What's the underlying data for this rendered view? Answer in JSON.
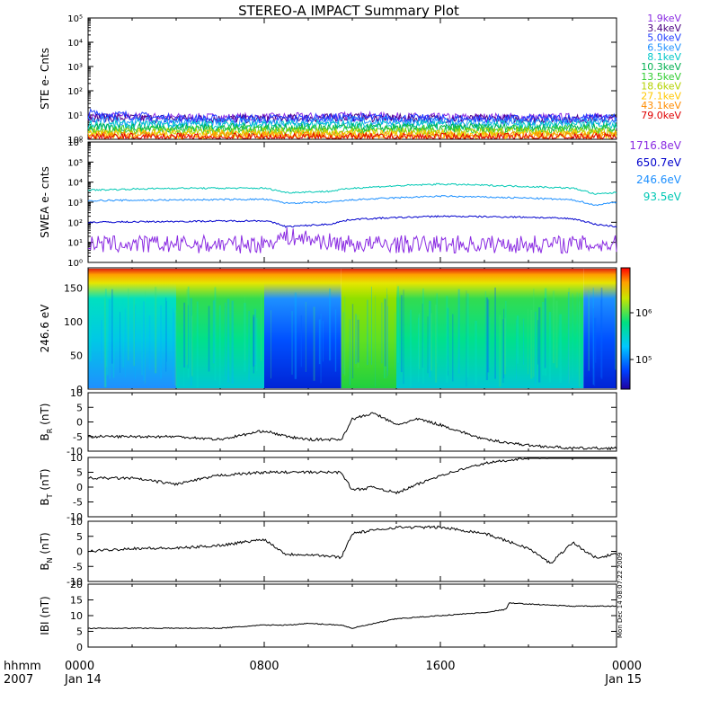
{
  "title": "STEREO-A IMPACT Summary Plot",
  "footer": {
    "time_label": "hhmm",
    "year_label": "2007",
    "ticks": [
      {
        "t": 0,
        "time": "0000",
        "date": "Jan 14"
      },
      {
        "t": 8,
        "time": "0800",
        "date": ""
      },
      {
        "t": 16,
        "time": "1600",
        "date": ""
      },
      {
        "t": 24,
        "time": "0000",
        "date": "Jan 15"
      }
    ],
    "timestamp": "Mon Dec 14 08:07:22 2009"
  },
  "colors": {
    "1.9keV": "#8a2be2",
    "3.4keV": "#4b0082",
    "5.0keV": "#1e3cff",
    "6.5keV": "#1e90ff",
    "8.1keV": "#00c8c8",
    "10.3keV": "#00b050",
    "13.5keV": "#32cd32",
    "18.6keV": "#b4d200",
    "27.1keV": "#ffc800",
    "43.1keV": "#ff8c00",
    "79.0keV": "#e00000",
    "1716.8eV": "#8a2be2",
    "650.7eV": "#0000cd",
    "246.6eV": "#1e90ff",
    "93.5eV": "#00c8b4"
  },
  "chart_data": [
    {
      "type": "line",
      "panel": "STE",
      "ylabel": "STE e- Cnts",
      "yscale": "log",
      "ylim": [
        1,
        100000
      ],
      "yticks": [
        "10⁰",
        "10¹",
        "10²",
        "10³",
        "10⁴",
        "10⁵"
      ],
      "legend": [
        "1.9keV",
        "3.4keV",
        "5.0keV",
        "6.5keV",
        "8.1keV",
        "10.3keV",
        "13.5keV",
        "18.6keV",
        "27.1keV",
        "43.1keV",
        "79.0keV"
      ],
      "x": [
        0,
        4,
        8,
        12,
        16,
        20,
        24
      ],
      "series": [
        {
          "name": "1.9keV",
          "values": [
            9,
            8,
            8,
            9,
            8,
            8,
            8
          ]
        },
        {
          "name": "3.4keV",
          "values": [
            8,
            7,
            7,
            8,
            7,
            7,
            7
          ]
        },
        {
          "name": "5.0keV",
          "values": [
            12,
            7,
            7,
            8,
            7,
            7,
            8
          ]
        },
        {
          "name": "6.5keV",
          "values": [
            6,
            5,
            5,
            6,
            5,
            5,
            5
          ]
        },
        {
          "name": "8.1keV",
          "values": [
            4,
            4,
            4,
            4,
            4,
            4,
            4
          ]
        },
        {
          "name": "10.3keV",
          "values": [
            3,
            3,
            3,
            3,
            3,
            3,
            3
          ]
        },
        {
          "name": "13.5keV",
          "values": [
            2.5,
            2.5,
            2.5,
            2.5,
            2.5,
            2.5,
            2.5
          ]
        },
        {
          "name": "18.6keV",
          "values": [
            2,
            2,
            2,
            2,
            2,
            2,
            2
          ]
        },
        {
          "name": "27.1keV",
          "values": [
            1.6,
            1.6,
            1.6,
            1.6,
            1.6,
            1.6,
            1.6
          ]
        },
        {
          "name": "43.1keV",
          "values": [
            1.4,
            1.4,
            1.4,
            1.4,
            1.4,
            1.4,
            1.4
          ]
        },
        {
          "name": "79.0keV",
          "values": [
            1.2,
            1.2,
            1.2,
            1.2,
            1.2,
            1.2,
            1.2
          ]
        }
      ]
    },
    {
      "type": "line",
      "panel": "SWEA",
      "ylabel": "SWEA e- cnts",
      "yscale": "log",
      "ylim": [
        1,
        1000000
      ],
      "yticks": [
        "10⁰",
        "10¹",
        "10²",
        "10³",
        "10⁴",
        "10⁵",
        "10⁶"
      ],
      "legend": [
        "1716.8eV",
        "650.7eV",
        "246.6eV",
        "93.5eV"
      ],
      "x": [
        0,
        4,
        8,
        9,
        11,
        12,
        16,
        20,
        22,
        23,
        24
      ],
      "series": [
        {
          "name": "93.5eV",
          "values": [
            4000,
            5000,
            5000,
            3000,
            3500,
            5000,
            8000,
            6000,
            5000,
            2500,
            3000
          ]
        },
        {
          "name": "246.6eV",
          "values": [
            1200,
            1300,
            1400,
            900,
            1000,
            1300,
            2000,
            1600,
            1300,
            700,
            1000
          ]
        },
        {
          "name": "650.7eV",
          "values": [
            100,
            110,
            120,
            60,
            80,
            140,
            200,
            180,
            150,
            80,
            60
          ]
        },
        {
          "name": "1716.8eV",
          "values": [
            8,
            8,
            8,
            20,
            10,
            8,
            8,
            8,
            8,
            8,
            8
          ]
        }
      ]
    },
    {
      "type": "heatmap",
      "panel": "PAD",
      "ylabel": "246.6 eV",
      "ylim": [
        0,
        180
      ],
      "yticks": [
        0,
        50,
        100,
        150
      ],
      "colorbar": {
        "scale": "log",
        "ticks": [
          "10⁵",
          "10⁶"
        ]
      },
      "x_blocks": [
        {
          "x0": 0,
          "x1": 4,
          "level": "mid"
        },
        {
          "x0": 4,
          "x1": 8,
          "level": "mid-high"
        },
        {
          "x0": 8,
          "x1": 11.5,
          "level": "low"
        },
        {
          "x0": 11.5,
          "x1": 14,
          "level": "high"
        },
        {
          "x0": 14,
          "x1": 22.5,
          "level": "mid-high"
        },
        {
          "x0": 22.5,
          "x1": 24,
          "level": "low"
        }
      ]
    },
    {
      "type": "line",
      "panel": "BR",
      "ylabel": "B",
      "ylabel_sub": "R",
      "ylabel_unit": "(nT)",
      "ylim": [
        -10,
        10
      ],
      "yticks": [
        -10,
        -5,
        0,
        5,
        10
      ],
      "x": [
        0,
        2,
        4,
        6,
        8,
        9,
        10,
        11,
        11.5,
        12,
        13,
        14,
        15,
        16,
        18,
        20,
        22,
        23,
        24
      ],
      "values": [
        -5,
        -5,
        -5,
        -6,
        -3,
        -5,
        -6,
        -6,
        -6,
        1,
        3,
        -1,
        1,
        -1,
        -6,
        -8,
        -9,
        -9,
        -9
      ]
    },
    {
      "type": "line",
      "panel": "BT",
      "ylabel": "B",
      "ylabel_sub": "T",
      "ylabel_unit": "(nT)",
      "ylim": [
        -10,
        10
      ],
      "yticks": [
        -10,
        -5,
        0,
        5,
        10
      ],
      "x": [
        0,
        2,
        4,
        6,
        8,
        10,
        11.5,
        12,
        13,
        14,
        16,
        18,
        20,
        21,
        22,
        23,
        24
      ],
      "values": [
        3,
        3,
        1,
        4,
        5,
        5,
        5,
        -1,
        0,
        -2,
        4,
        8,
        10,
        10,
        11,
        11,
        11
      ]
    },
    {
      "type": "line",
      "panel": "BN",
      "ylabel": "B",
      "ylabel_sub": "N",
      "ylabel_unit": "(nT)",
      "ylim": [
        -10,
        10
      ],
      "yticks": [
        -10,
        -5,
        0,
        5,
        10
      ],
      "x": [
        0,
        2,
        4,
        6,
        8,
        9,
        10,
        11.5,
        12,
        14,
        16,
        18,
        20,
        21,
        22,
        23,
        24
      ],
      "values": [
        0,
        1,
        1,
        2,
        4,
        -1,
        -1,
        -2,
        6,
        8,
        8,
        6,
        1,
        -4,
        3,
        -2,
        -1
      ]
    },
    {
      "type": "line",
      "panel": "B",
      "ylabel": "IBI",
      "ylabel_unit": "(nT)",
      "ylim": [
        0,
        20
      ],
      "yticks": [
        0,
        5,
        10,
        15,
        20
      ],
      "x": [
        0,
        2,
        4,
        6,
        8,
        9,
        10,
        11.5,
        12,
        14,
        16,
        18,
        19,
        19.1,
        22,
        24
      ],
      "values": [
        6,
        6,
        6,
        6,
        7,
        7,
        7.5,
        7,
        6,
        9,
        10,
        11,
        12,
        14,
        13,
        13
      ]
    }
  ]
}
